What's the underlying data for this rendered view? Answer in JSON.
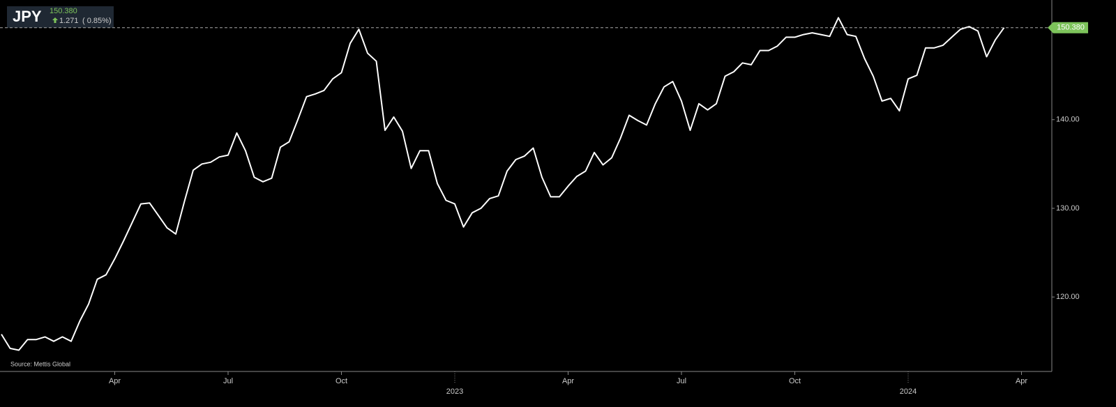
{
  "chart_data": {
    "type": "line",
    "ticker": "JPY",
    "price": "150.380",
    "change": "1.271",
    "change_pct": "( 0.85%)",
    "source": "Source: Mettis Global",
    "color": "#ffffff",
    "accent": "#7dc35b",
    "categories": [
      null,
      null,
      null,
      null,
      null,
      null,
      null,
      null,
      null,
      null,
      null,
      null,
      null,
      "Apr",
      null,
      null,
      null,
      null,
      null,
      null,
      null,
      null,
      null,
      null,
      null,
      null,
      "Jul",
      null,
      null,
      null,
      null,
      null,
      null,
      null,
      null,
      null,
      null,
      null,
      null,
      "Oct",
      null,
      null,
      null,
      null,
      null,
      null,
      null,
      null,
      null,
      null,
      null,
      null,
      "2023",
      null,
      null,
      null,
      null,
      null,
      null,
      null,
      null,
      null,
      null,
      null,
      null,
      "Apr",
      null,
      null,
      null,
      null,
      null,
      null,
      null,
      null,
      null,
      null,
      null,
      null,
      "Jul",
      null,
      null,
      null,
      null,
      null,
      null,
      null,
      null,
      null,
      null,
      null,
      null,
      "Oct",
      null,
      null,
      null,
      null,
      null,
      null,
      null,
      null,
      null,
      null,
      null,
      null,
      "2024",
      null,
      null,
      null,
      null,
      null,
      null,
      null,
      null,
      null,
      null,
      null,
      null,
      "Apr"
    ],
    "values": [
      115.8,
      114.2,
      114.0,
      115.2,
      115.2,
      115.5,
      115.0,
      115.5,
      115.0,
      117.3,
      119.2,
      122.0,
      122.5,
      124.3,
      126.3,
      128.4,
      130.5,
      130.6,
      129.2,
      127.8,
      127.1,
      130.8,
      134.3,
      135.0,
      135.2,
      135.8,
      136.0,
      138.5,
      136.5,
      133.5,
      133.0,
      133.4,
      136.9,
      137.5,
      140.0,
      142.6,
      142.9,
      143.3,
      144.6,
      145.3,
      148.6,
      150.2,
      147.5,
      146.6,
      138.8,
      140.3,
      138.7,
      134.5,
      136.5,
      136.5,
      132.8,
      130.9,
      130.5,
      127.9,
      129.5,
      130.0,
      131.1,
      131.4,
      134.2,
      135.5,
      135.9,
      136.8,
      133.5,
      131.3,
      131.3,
      132.5,
      133.6,
      134.2,
      136.3,
      134.9,
      135.7,
      137.9,
      140.5,
      139.9,
      139.4,
      141.8,
      143.7,
      144.3,
      142.1,
      138.8,
      141.8,
      141.1,
      141.8,
      144.9,
      145.4,
      146.4,
      146.2,
      147.8,
      147.8,
      148.3,
      149.3,
      149.3,
      149.6,
      149.8,
      149.6,
      149.4,
      151.5,
      149.6,
      149.4,
      146.9,
      144.9,
      142.1,
      142.4,
      141.0,
      144.6,
      145.0,
      148.1,
      148.1,
      148.4,
      149.3,
      150.2,
      150.5,
      150.0,
      147.1,
      149.0,
      150.38,
      null,
      null
    ],
    "last_label": {
      "value": 150.38,
      "label": "150.380"
    },
    "ylim": [
      111.6,
      153.5
    ],
    "yticks": [
      {
        "value": 120,
        "label": "120.00"
      },
      {
        "value": 130,
        "label": "130.00"
      },
      {
        "value": 140,
        "label": "140.00"
      }
    ]
  }
}
